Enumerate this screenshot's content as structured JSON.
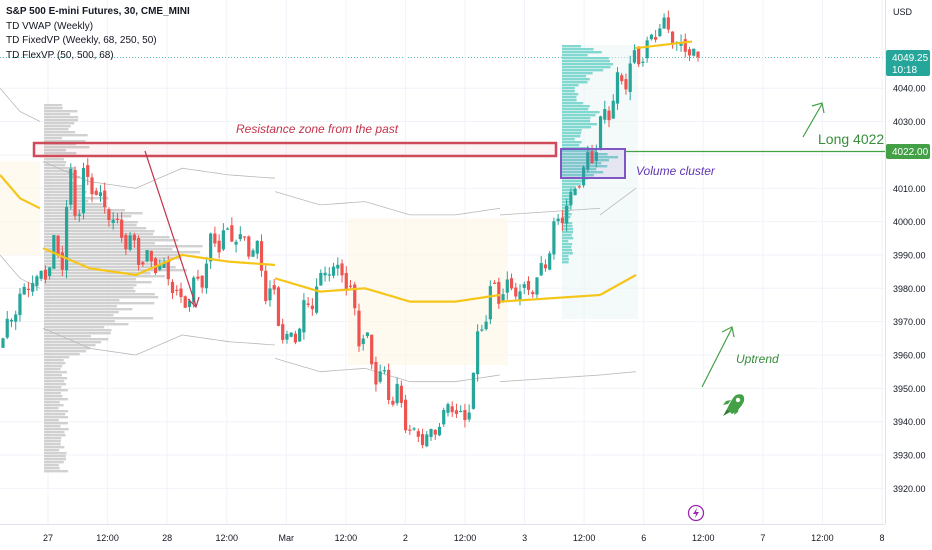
{
  "header": {
    "symbol": "S&P 500 E-mini Futures, 30, CME_MINI",
    "indicators": [
      "TD VWAP (Weekly)",
      "TD FixedVP (Weekly, 68, 250, 50)",
      "TD FlexVP (50, 500, 68)"
    ],
    "currency": "USD"
  },
  "colors": {
    "bull": "#26a69a",
    "bear": "#ef5350",
    "vwap": "#f5c518",
    "resistance": "#d04b5a",
    "cluster": "#7e57c2",
    "long": "#43a047",
    "profile_left": "#c9c9c9",
    "profile_right": "#80d8d0",
    "band": "#b9b9b9"
  },
  "annotations": {
    "resistance_label": "Resistance zone from the past",
    "cluster_label": "Volume cluster",
    "long_label": "Long 4022",
    "uptrend_label": "Uptrend",
    "rocket_icon": "rocket-icon",
    "flash_icon": "lightning-icon"
  },
  "price_tags": {
    "last_price": "4049.25",
    "countdown": "10:18",
    "long_level": "4022.00"
  },
  "chart_data": {
    "type": "candlestick",
    "title": "S&P 500 E-mini Futures, 30, CME_MINI",
    "y_axis": {
      "range": [
        3914,
        4068
      ],
      "ticks": [
        3920,
        3930,
        3940,
        3950,
        3960,
        3970,
        3980,
        3990,
        4000,
        4010,
        4020,
        4030,
        4040
      ],
      "unit": "USD",
      "side": "right"
    },
    "x_axis": {
      "ticks": [
        "27",
        "12:00",
        "28",
        "12:00",
        "Mar",
        "12:00",
        "2",
        "12:00",
        "3",
        "12:00",
        "6",
        "12:00",
        "7",
        "12:00",
        "8"
      ]
    },
    "price_path": [
      [
        3968,
        3962
      ],
      [
        3976,
        3980
      ],
      [
        3984,
        3984
      ],
      [
        3980,
        3998
      ],
      [
        3996,
        4022
      ],
      [
        4014,
        4008
      ],
      [
        4003,
        4000
      ],
      [
        3998,
        3990
      ],
      [
        3992,
        3984
      ],
      [
        3988,
        3985
      ],
      [
        3978,
        3972
      ],
      [
        3978,
        3986
      ],
      [
        3990,
        4002
      ],
      [
        3996,
        3994
      ],
      [
        3988,
        3998
      ],
      [
        3984,
        3972
      ],
      [
        3966,
        3960
      ],
      [
        3968,
        3978
      ],
      [
        3984,
        3986
      ],
      [
        3988,
        3984
      ],
      [
        3974,
        3962
      ],
      [
        3950,
        3958
      ],
      [
        3954,
        3942
      ],
      [
        3938,
        3934
      ],
      [
        3932,
        3938
      ],
      [
        3944,
        3946
      ],
      [
        3938,
        3942
      ],
      [
        3968,
        3982
      ],
      [
        3984,
        3976
      ],
      [
        3978,
        3980
      ],
      [
        3978,
        3985
      ],
      [
        3994,
        4002
      ],
      [
        4008,
        4010
      ],
      [
        4015,
        4024
      ],
      [
        4030,
        4040
      ],
      [
        4040,
        4050
      ],
      [
        4048,
        4054
      ],
      [
        4058,
        4062
      ],
      [
        4054,
        4050
      ],
      [
        4052,
        4049.25
      ]
    ],
    "vwap": [
      [
        4014,
        4007,
        4004
      ],
      [
        3992,
        3986,
        3984
      ],
      [
        3990,
        3988,
        3987
      ],
      [
        3983,
        3979,
        3980
      ],
      [
        3976,
        3976,
        3978
      ],
      [
        3984
      ]
    ],
    "vwap_current": [
      4052,
      4054
    ],
    "levels": {
      "resistance_zone": [
        4020,
        4023
      ],
      "volume_cluster": [
        4015,
        4022
      ],
      "long_entry": 4022
    },
    "grid": true
  }
}
